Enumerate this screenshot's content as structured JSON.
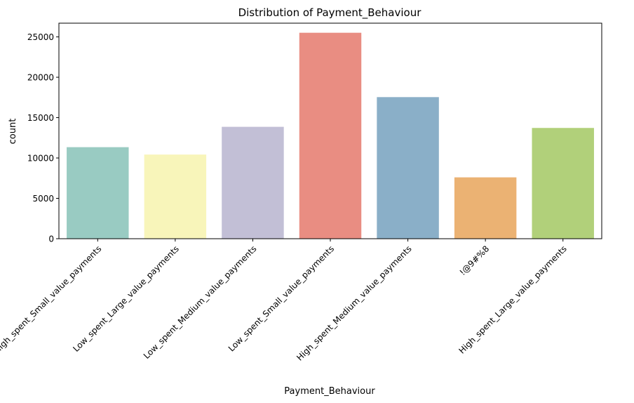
{
  "chart_data": {
    "type": "bar",
    "title": "Distribution of Payment_Behaviour",
    "xlabel": "Payment_Behaviour",
    "ylabel": "count",
    "ylim": [
      0,
      26700
    ],
    "yticks": [
      0,
      5000,
      10000,
      15000,
      20000,
      25000
    ],
    "categories": [
      "High_spent_Small_value_payments",
      "Low_spent_Large_value_payments",
      "Low_spent_Medium_value_payments",
      "Low_spent_Small_value_payments",
      "High_spent_Medium_value_payments",
      "!@9#%8",
      "High_spent_Large_value_payments"
    ],
    "values": [
      11340,
      10425,
      13861,
      25513,
      17540,
      7600,
      13721
    ],
    "colors": [
      "#99cbc2",
      "#f8f5ba",
      "#c2bfd6",
      "#e98d82",
      "#8aafc8",
      "#ebb273",
      "#b1d07a"
    ],
    "grid": false
  }
}
